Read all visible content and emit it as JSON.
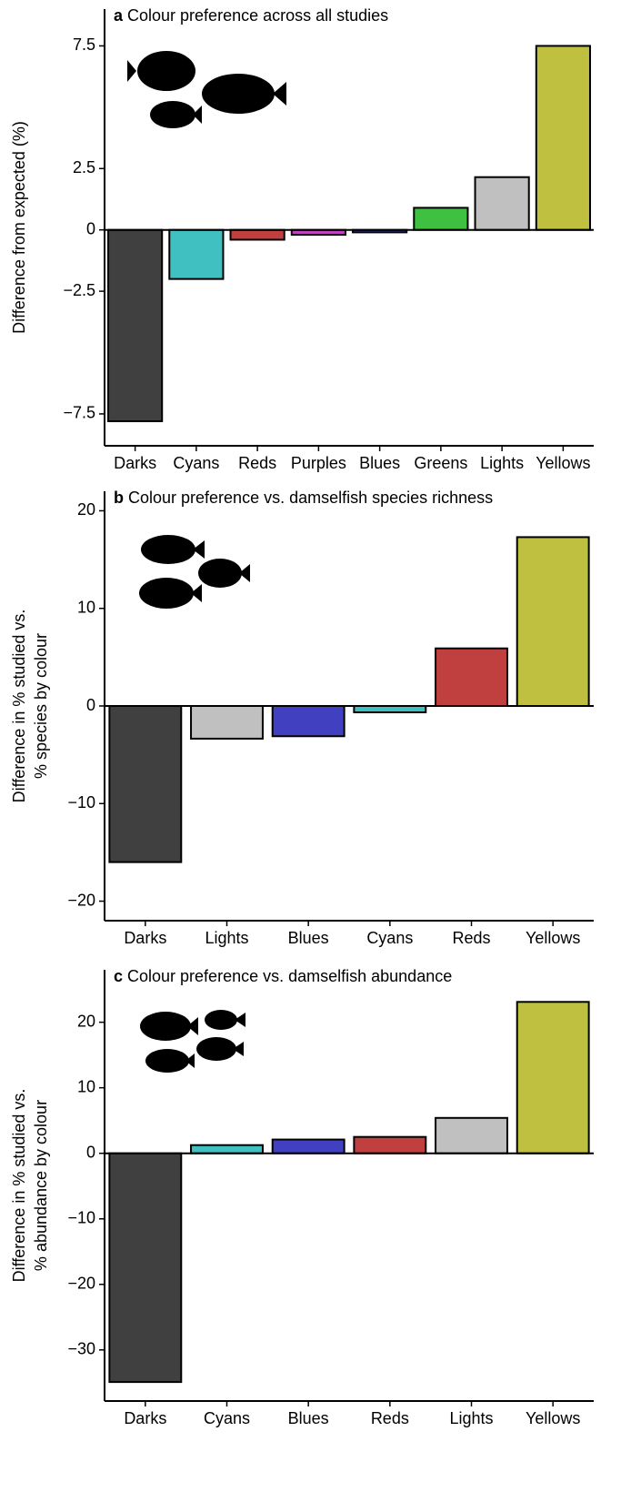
{
  "chart_data": [
    {
      "type": "bar",
      "panel": "a",
      "title": "Colour preference across all studies",
      "ylabel": [
        "Difference from expected (%)"
      ],
      "categories": [
        "Darks",
        "Cyans",
        "Reds",
        "Purples",
        "Blues",
        "Greens",
        "Lights",
        "Yellows"
      ],
      "values": [
        -7.8,
        -2.0,
        -0.4,
        -0.2,
        -0.1,
        0.9,
        2.15,
        7.5
      ],
      "colors": [
        "#404040",
        "#40c0c0",
        "#c04040",
        "#c040c0",
        "#4040c0",
        "#40c040",
        "#c0c0c0",
        "#c0c040"
      ],
      "ylim": [
        -8.8,
        9.0
      ],
      "yticks": [
        {
          "value": -7.5,
          "label": "−7.5"
        },
        {
          "value": -2.5,
          "label": "−2.5"
        },
        0,
        2.5,
        7.5
      ]
    },
    {
      "type": "bar",
      "panel": "b",
      "title": "Colour preference vs. damselfish species richness",
      "ylabel": [
        "Difference in % studied vs.",
        "% species by colour"
      ],
      "categories": [
        "Darks",
        "Lights",
        "Blues",
        "Cyans",
        "Reds",
        "Yellows"
      ],
      "values": [
        -16.0,
        -3.35,
        -3.1,
        -0.65,
        5.9,
        17.3
      ],
      "colors": [
        "#404040",
        "#c0c0c0",
        "#4040c0",
        "#40c0c0",
        "#c04040",
        "#c0c040"
      ],
      "ylim": [
        -22,
        22
      ],
      "yticks": [
        {
          "value": -20,
          "label": "−20"
        },
        {
          "value": -10,
          "label": "−10"
        },
        0,
        10,
        20
      ]
    },
    {
      "type": "bar",
      "panel": "c",
      "title": "Colour preference vs. damselfish abundance",
      "ylabel": [
        "Difference in % studied vs.",
        "% abundance by colour"
      ],
      "categories": [
        "Darks",
        "Cyans",
        "Blues",
        "Reds",
        "Lights",
        "Yellows"
      ],
      "values": [
        -34.9,
        1.25,
        2.1,
        2.5,
        5.4,
        23.1
      ],
      "colors": [
        "#404040",
        "#40c0c0",
        "#4040c0",
        "#c04040",
        "#c0c0c0",
        "#c0c040"
      ],
      "ylim": [
        -37.8,
        28
      ],
      "yticks": [
        {
          "value": -30,
          "label": "−30"
        },
        {
          "value": -20,
          "label": "−20"
        },
        {
          "value": -10,
          "label": "−10"
        },
        0,
        10,
        20
      ]
    }
  ]
}
